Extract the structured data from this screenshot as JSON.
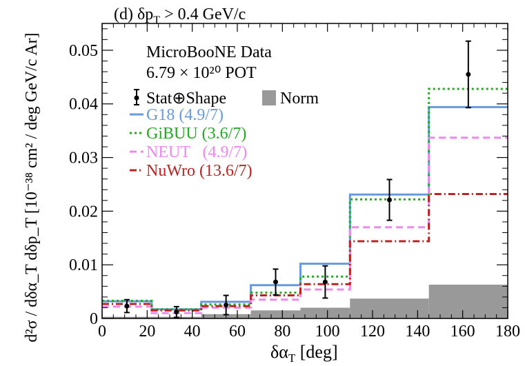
{
  "chart_data": {
    "type": "step",
    "title": "(d) δp_T > 0.4 GeV/c",
    "title_main": "(d) δp",
    "title_sub": "T",
    "title_tail": " > 0.4 GeV/c",
    "xlabel_main": "δα",
    "xlabel_sub": "T",
    "xlabel_tail": " [deg]",
    "ylabel_text": "d²σ / dδα_T dδp_T [10⁻³⁸ cm² / deg GeV/c Ar]",
    "xlim": [
      0,
      180
    ],
    "ylim": [
      0,
      0.055
    ],
    "x_ticks": [
      "0",
      "20",
      "40",
      "60",
      "80",
      "100",
      "120",
      "140",
      "160",
      "180"
    ],
    "y_ticks": [
      "0",
      "0.01",
      "0.02",
      "0.03",
      "0.04",
      "0.05"
    ],
    "bin_edges": [
      0,
      22,
      44,
      66,
      88,
      110,
      145,
      180
    ],
    "annotation_lines": [
      "MicroBooNE Data",
      "6.79 × 10²⁰ POT"
    ],
    "data": {
      "name": "Stat⊕Shape",
      "x": [
        11,
        33,
        55,
        77,
        99,
        127.5,
        162.5
      ],
      "y": [
        0.0023,
        0.0012,
        0.0025,
        0.0068,
        0.0068,
        0.0221,
        0.0455
      ],
      "err": [
        0.0012,
        0.001,
        0.0018,
        0.0024,
        0.003,
        0.0038,
        0.0062
      ]
    },
    "norm_band": {
      "name": "Norm",
      "values": [
        0.0003,
        0.0003,
        0.0008,
        0.0015,
        0.002,
        0.0037,
        0.0063
      ],
      "color": "#999999"
    },
    "series": [
      {
        "name": "G18 (4.9/7)",
        "color": "#6699dd",
        "dash": "",
        "values": [
          0.0032,
          0.0017,
          0.0031,
          0.0062,
          0.0102,
          0.0231,
          0.0394
        ]
      },
      {
        "name": "GiBUU (3.6/7)",
        "color": "#22aa22",
        "dash": "3,4",
        "values": [
          0.0033,
          0.0017,
          0.0026,
          0.0048,
          0.0078,
          0.0222,
          0.0428
        ]
      },
      {
        "name": "NEUT   (4.9/7)",
        "color": "#ee88ee",
        "dash": "10,6",
        "values": [
          0.0022,
          0.001,
          0.002,
          0.0035,
          0.0054,
          0.017,
          0.0337
        ]
      },
      {
        "name": "NuWro (13.6/7)",
        "color": "#bb2222",
        "dash": "10,4,2,4",
        "values": [
          0.0027,
          0.0015,
          0.0023,
          0.0043,
          0.0064,
          0.0144,
          0.0232
        ]
      }
    ]
  }
}
